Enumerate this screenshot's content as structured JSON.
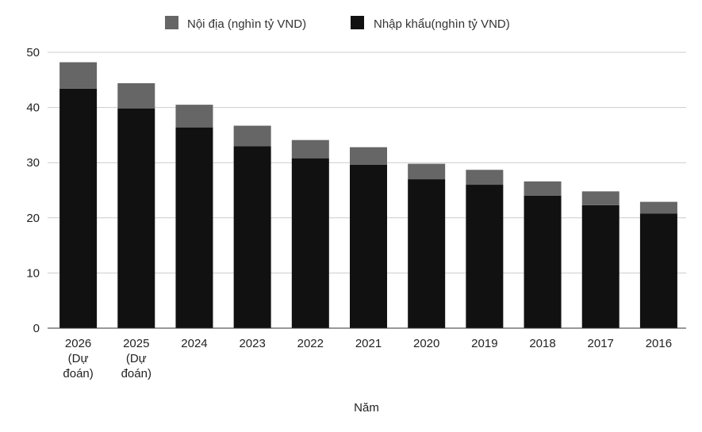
{
  "chart_data": {
    "type": "bar",
    "stacked": true,
    "title": "",
    "xlabel": "Năm",
    "ylabel": "",
    "ylim": [
      0,
      50
    ],
    "yticks": [
      0,
      10,
      20,
      30,
      40,
      50
    ],
    "grid": true,
    "legend_position": "top",
    "categories": [
      "2026 (Dự đoán)",
      "2025 (Dự đoán)",
      "2024",
      "2023",
      "2022",
      "2021",
      "2020",
      "2019",
      "2018",
      "2017",
      "2016"
    ],
    "series": [
      {
        "name": "Nhập khẩu(nghìn tỷ VND)",
        "color": "#111111",
        "values": [
          43.4,
          39.8,
          36.4,
          33.0,
          30.8,
          29.6,
          27.0,
          26.0,
          24.0,
          22.3,
          20.8
        ]
      },
      {
        "name": "Nội địa (nghìn tỷ VND)",
        "color": "#666666",
        "values": [
          4.8,
          4.6,
          4.1,
          3.7,
          3.3,
          3.2,
          2.8,
          2.7,
          2.6,
          2.5,
          2.1
        ]
      }
    ]
  }
}
